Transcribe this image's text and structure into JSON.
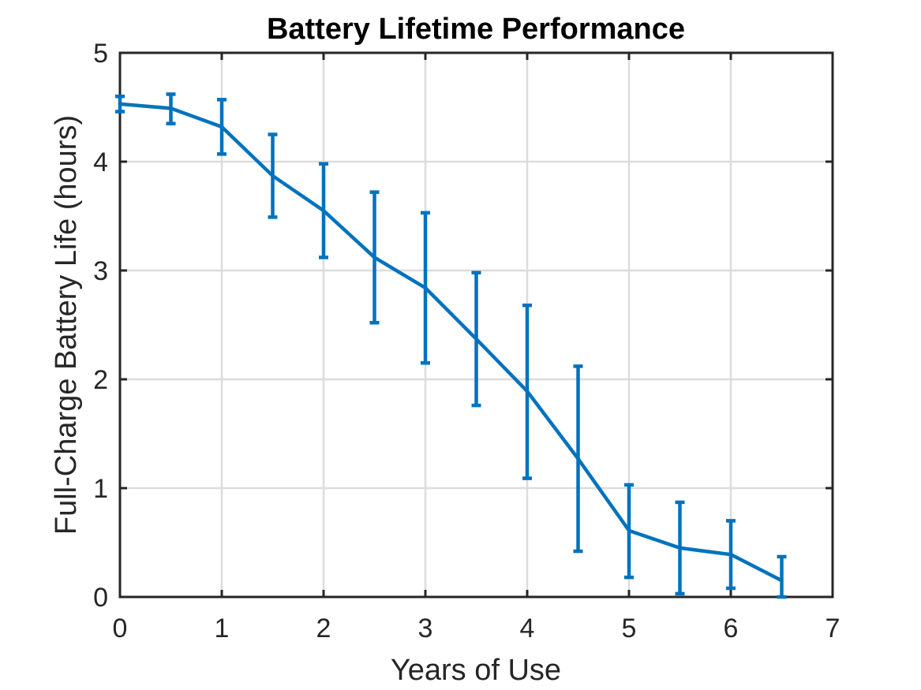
{
  "chart_data": {
    "type": "line",
    "title": "Battery Lifetime Performance",
    "xlabel": "Years of Use",
    "ylabel": "Full-Charge Battery Life (hours)",
    "xlim": [
      0,
      7
    ],
    "ylim": [
      0,
      5
    ],
    "xticks": [
      "0",
      "1",
      "2",
      "3",
      "4",
      "5",
      "6",
      "7"
    ],
    "yticks": [
      "0",
      "1",
      "2",
      "3",
      "4",
      "5"
    ],
    "grid": true,
    "legend": "none",
    "error_bars": true,
    "series": [
      {
        "color": "#0072BD",
        "x": [
          0,
          0.5,
          1,
          1.5,
          2,
          2.5,
          3,
          3.5,
          4,
          4.5,
          5,
          5.5,
          6,
          6.5
        ],
        "y": [
          4.53,
          4.49,
          4.32,
          3.87,
          3.55,
          3.12,
          2.84,
          2.37,
          1.89,
          1.27,
          0.61,
          0.45,
          0.39,
          0.15
        ],
        "error_lower": [
          4.46,
          4.35,
          4.07,
          3.49,
          3.12,
          2.52,
          2.15,
          1.76,
          1.09,
          0.42,
          0.18,
          0.03,
          0.08,
          0.0
        ],
        "error_upper": [
          4.6,
          4.62,
          4.57,
          4.25,
          3.98,
          3.72,
          3.53,
          2.98,
          2.68,
          2.12,
          1.03,
          0.87,
          0.7,
          0.37
        ]
      }
    ]
  }
}
